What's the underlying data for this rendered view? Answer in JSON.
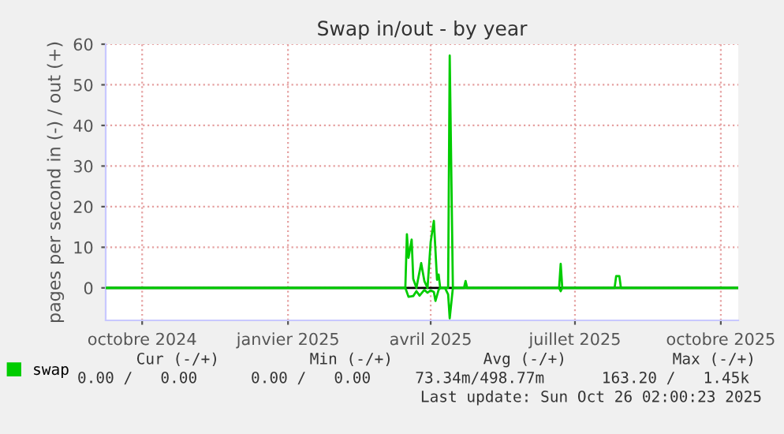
{
  "chart_data": {
    "type": "line",
    "title": "Swap in/out - by year",
    "ylabel": "pages per second in (-) / out (+)",
    "xlim": [
      "2024-09-22",
      "2025-10-26"
    ],
    "ylim": [
      -8,
      60
    ],
    "yticks": [
      0,
      10,
      20,
      30,
      40,
      50,
      60
    ],
    "xticks": [
      {
        "value": "2024-10-15",
        "label": "octobre 2024"
      },
      {
        "value": "2025-01-15",
        "label": "janvier 2025"
      },
      {
        "value": "2025-04-15",
        "label": "avril 2025"
      },
      {
        "value": "2025-07-15",
        "label": "juillet 2025"
      },
      {
        "value": "2025-10-15",
        "label": "octobre 2025"
      }
    ],
    "grid": true,
    "legend": "bottom left",
    "ref_lines": [
      {
        "axis": "y",
        "value": 0,
        "color": "#000000"
      }
    ],
    "series": [
      {
        "name": "swap",
        "color": "#00cc00",
        "x": [
          "2024-09-22",
          "2025-03-30",
          "2025-03-31",
          "2025-04-01",
          "2025-04-03",
          "2025-04-04",
          "2025-04-06",
          "2025-04-09",
          "2025-04-11",
          "2025-04-13",
          "2025-04-15",
          "2025-04-17",
          "2025-04-19",
          "2025-04-20",
          "2025-04-21",
          "2025-04-26",
          "2025-04-27",
          "2025-04-29",
          "2025-05-06",
          "2025-05-07",
          "2025-05-08",
          "2025-07-05",
          "2025-07-06",
          "2025-07-07",
          "2025-08-09",
          "2025-08-10",
          "2025-08-12",
          "2025-08-13",
          "2025-10-26"
        ],
        "values": [
          0,
          0,
          13.2,
          7.4,
          11.9,
          2.2,
          0,
          6.1,
          1.7,
          0,
          11.3,
          16.5,
          2,
          3.3,
          0,
          0,
          57.2,
          0,
          0,
          1.7,
          0,
          0,
          5.9,
          0,
          0,
          2.9,
          2.9,
          0,
          0
        ]
      },
      {
        "color": "#00cc00",
        "x": [
          "2024-09-22",
          "2025-03-30",
          "2025-04-01",
          "2025-04-04",
          "2025-04-06",
          "2025-04-08",
          "2025-04-11",
          "2025-04-13",
          "2025-04-15",
          "2025-04-17",
          "2025-04-18",
          "2025-04-20",
          "2025-04-21",
          "2025-04-24",
          "2025-04-26",
          "2025-04-27",
          "2025-04-29",
          "2025-07-05",
          "2025-07-06",
          "2025-07-07",
          "2025-10-26"
        ],
        "values": [
          0,
          0,
          -2.2,
          -2,
          -0.8,
          -1.9,
          -0.5,
          -1.2,
          -0.6,
          -1,
          -3.2,
          -0.5,
          0,
          0,
          -1.6,
          -7.5,
          0,
          0,
          -0.8,
          0,
          0
        ]
      }
    ],
    "annotations": [
      "Cur (-/+)",
      "Min (-/+)",
      "Avg (-/+)",
      "Max (-/+)",
      "0.00 /   0.00",
      "0.00 /   0.00",
      "73.34m/498.77m",
      "163.20 /   1.45k",
      "Last update: Sun Oct 26 02:00:23 2025"
    ]
  }
}
